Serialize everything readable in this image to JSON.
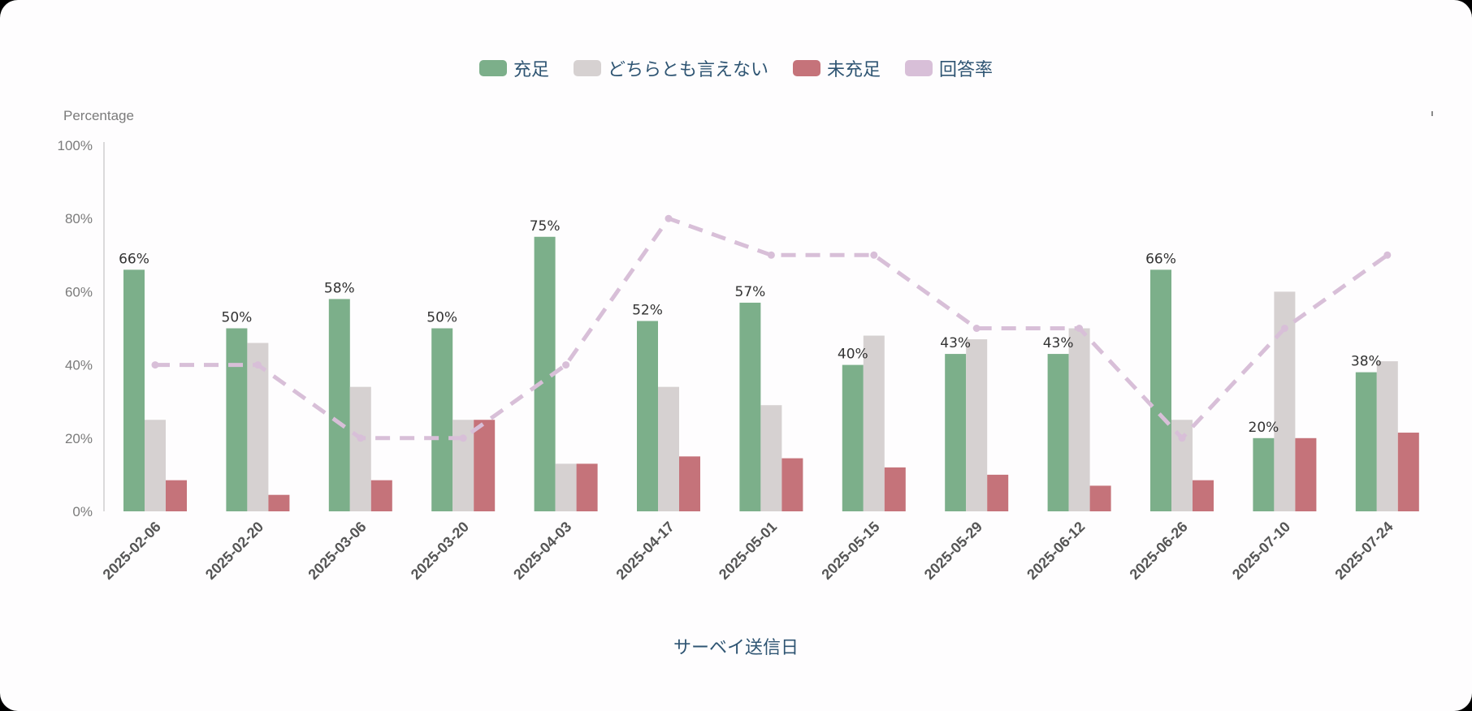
{
  "legend": {
    "items": [
      {
        "label": "充足",
        "color": "#7caf8a"
      },
      {
        "label": "どちらとも言えない",
        "color": "#d6d1d1"
      },
      {
        "label": "未充足",
        "color": "#c5737a"
      },
      {
        "label": "回答率",
        "color": "#d8bfd8"
      }
    ]
  },
  "y_axis": {
    "title": "Percentage",
    "ticks": [
      "0%",
      "20%",
      "40%",
      "60%",
      "80%",
      "100%"
    ]
  },
  "x_axis": {
    "title": "サーベイ送信日"
  },
  "chart_data": {
    "type": "bar",
    "title": "",
    "xlabel": "サーベイ送信日",
    "ylabel": "Percentage",
    "ylim": [
      0,
      100
    ],
    "grid": false,
    "legend_position": "top",
    "categories": [
      "2025-02-06",
      "2025-02-20",
      "2025-03-06",
      "2025-03-20",
      "2025-04-03",
      "2025-04-17",
      "2025-05-01",
      "2025-05-15",
      "2025-05-29",
      "2025-06-12",
      "2025-06-26",
      "2025-07-10",
      "2025-07-24"
    ],
    "series": [
      {
        "name": "充足",
        "type": "bar",
        "color": "#7caf8a",
        "values": [
          66,
          50,
          58,
          50,
          75,
          52,
          57,
          40,
          43,
          43,
          66,
          20,
          38
        ],
        "data_labels": [
          "66%",
          "50%",
          "58%",
          "50%",
          "75%",
          "52%",
          "57%",
          "40%",
          "43%",
          "43%",
          "66%",
          "20%",
          "38%"
        ]
      },
      {
        "name": "どちらとも言えない",
        "type": "bar",
        "color": "#d6d1d1",
        "values": [
          25,
          46,
          34,
          25,
          13,
          34,
          29,
          48,
          47,
          50,
          25,
          60,
          41
        ]
      },
      {
        "name": "未充足",
        "type": "bar",
        "color": "#c5737a",
        "values": [
          8.5,
          4.5,
          8.5,
          25,
          13,
          15,
          14.5,
          12,
          10,
          7,
          8.5,
          20,
          21.5
        ]
      },
      {
        "name": "回答率",
        "type": "line",
        "style": "dashed",
        "color": "#d8bfd8",
        "values": [
          40,
          40,
          20,
          20,
          40,
          80,
          70,
          70,
          50,
          50,
          20,
          50,
          70
        ]
      }
    ]
  }
}
